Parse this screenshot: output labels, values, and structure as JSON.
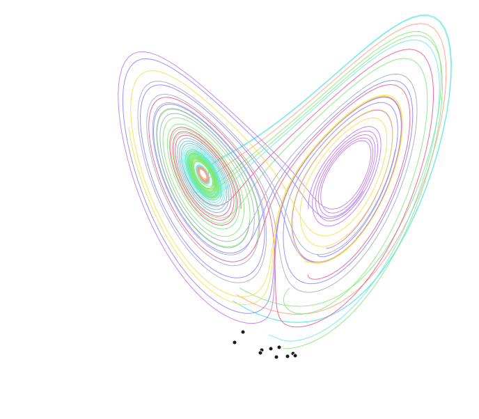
{
  "scene": {
    "description_free": true,
    "background": "#ffffff",
    "attractor": {
      "system": "lorenz",
      "sigma": 10,
      "rho": 28,
      "beta": 2.6667
    },
    "trajectories": [
      {
        "color": "#66e8e0",
        "seed": [
          -8.0,
          24.0,
          8.0
        ]
      },
      {
        "color": "#66e8e0",
        "seed": [
          -8.2,
          24.3,
          8.1
        ]
      },
      {
        "color": "#ff9a7a",
        "seed": [
          -7.5,
          23.0,
          9.0
        ]
      },
      {
        "color": "#7ee870",
        "seed": [
          -7.0,
          22.0,
          10.0
        ]
      },
      {
        "color": "#7ee870",
        "seed": [
          2.0,
          -1.0,
          10.0
        ]
      },
      {
        "color": "#8080ff",
        "seed": [
          5.0,
          5.0,
          15.0
        ]
      },
      {
        "color": "#c070f0",
        "seed": [
          6.0,
          6.5,
          16.0
        ]
      },
      {
        "color": "#f04f8a",
        "seed": [
          4.0,
          3.0,
          12.0
        ]
      },
      {
        "color": "#f5dd40",
        "seed": [
          3.0,
          8.0,
          14.0
        ]
      },
      {
        "color": "#a0a8c0",
        "seed": [
          -3.0,
          -3.0,
          20.0
        ]
      },
      {
        "color": "#7ee870",
        "seed": [
          1.0,
          1.0,
          1.0
        ]
      },
      {
        "color": "#66e8e0",
        "seed": [
          -1.0,
          2.0,
          3.0
        ]
      }
    ],
    "markers": {
      "color": "#1a1a1a",
      "count": 10
    }
  }
}
